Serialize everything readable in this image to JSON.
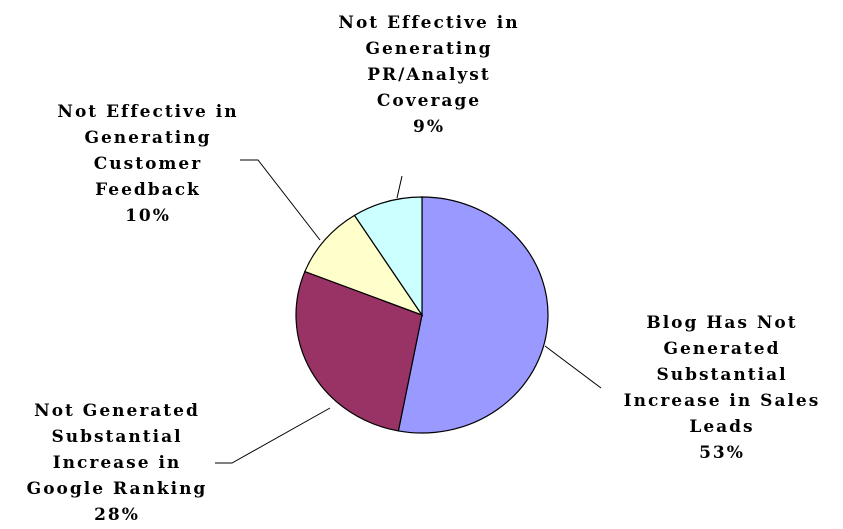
{
  "chart_data": {
    "type": "pie",
    "slices": [
      {
        "label": [
          "Blog Has Not",
          "Generated",
          "Substantial",
          "Increase in Sales",
          "Leads"
        ],
        "pct_text": "53%",
        "value": 53,
        "color": "#9999ff"
      },
      {
        "label": [
          "Not Generated",
          "Substantial",
          "Increase in",
          "Google Ranking"
        ],
        "pct_text": "28%",
        "value": 28,
        "color": "#993366"
      },
      {
        "label": [
          "Not Effective in",
          "Generating",
          "Customer",
          "Feedback"
        ],
        "pct_text": "10%",
        "value": 10,
        "color": "#ffffcc"
      },
      {
        "label": [
          "Not Effective in",
          "Generating",
          "PR/Analyst",
          "Coverage"
        ],
        "pct_text": "9%",
        "value": 9,
        "color": "#ccffff"
      }
    ]
  }
}
